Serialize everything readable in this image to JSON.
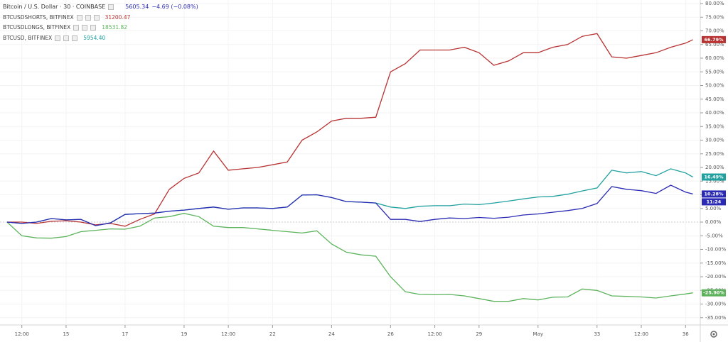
{
  "chart_data": {
    "type": "line",
    "x": [
      13,
      13.5,
      14,
      14.5,
      15,
      15.5,
      16,
      16.5,
      17,
      17.5,
      18,
      18.5,
      19,
      19.5,
      20,
      20.5,
      21,
      21.5,
      22,
      22.5,
      23,
      23.5,
      24,
      24.5,
      25,
      25.5,
      26,
      26.5,
      27,
      27.5,
      28,
      28.5,
      29,
      29.5,
      30,
      30.5,
      31,
      31.5,
      32,
      32.5,
      33,
      33.5,
      34,
      34.5,
      35,
      35.5,
      36,
      36.25
    ],
    "xlim": [
      12.76,
      36.5
    ],
    "xticks": [
      {
        "value": 13.5,
        "label": "12:00"
      },
      15,
      17,
      19,
      {
        "value": 20.5,
        "label": "12:00"
      },
      22,
      24,
      26,
      {
        "value": 27.5,
        "label": "12:00"
      },
      29,
      {
        "value": 31,
        "label": "May"
      },
      33,
      {
        "value": 34.5,
        "label": "12:00"
      },
      36
    ],
    "ylim": [
      -37.66,
      81.3
    ],
    "yticks": [
      {
        "value": -35,
        "label": "-35.00%"
      },
      {
        "value": -30,
        "label": "-30.00%"
      },
      {
        "value": -25,
        "label": "-25.00%"
      },
      {
        "value": -20,
        "label": "-20.00%"
      },
      {
        "value": -15,
        "label": "-15.00%"
      },
      {
        "value": -10,
        "label": "-10.00%"
      },
      {
        "value": -5,
        "label": "-5.00%"
      },
      {
        "value": 0,
        "label": "0.00%"
      },
      {
        "value": 5,
        "label": "5.00%"
      },
      {
        "value": 10,
        "label": "10.00%"
      },
      {
        "value": 15,
        "label": "15.00%"
      },
      {
        "value": 20,
        "label": "20.00%"
      },
      {
        "value": 25,
        "label": "25.00%"
      },
      {
        "value": 30,
        "label": "30.00%"
      },
      {
        "value": 35,
        "label": "35.00%"
      },
      {
        "value": 40,
        "label": "40.00%"
      },
      {
        "value": 45,
        "label": "45.00%"
      },
      {
        "value": 50,
        "label": "50.00%"
      },
      {
        "value": 55,
        "label": "55.00%"
      },
      {
        "value": 60,
        "label": "60.00%"
      },
      {
        "value": 65,
        "label": "65.00%"
      },
      {
        "value": 70,
        "label": "70.00%"
      },
      {
        "value": 75,
        "label": "75.00%"
      },
      {
        "value": 80,
        "label": "80.00%"
      }
    ],
    "grid": true,
    "main_price": "5605.34",
    "main_change": "−4.69 (−0.08%)",
    "series": [
      {
        "name": "Bitcoin / U.S. Dollar · 30 · COINBASE",
        "color": "#2a2ab4",
        "last_label": "10.28%",
        "countdown": "11:24",
        "values": [
          0,
          -0.5,
          0,
          1.3,
          0.8,
          1,
          -1.3,
          -0.3,
          2.8,
          3.1,
          3.3,
          4,
          4.4,
          5,
          5.5,
          4.7,
          5.2,
          5.2,
          5,
          5.5,
          9.9,
          10,
          9,
          7.5,
          7.3,
          7,
          1,
          1,
          0.2,
          1,
          1.5,
          1.3,
          1.7,
          1.4,
          1.8,
          2.6,
          3,
          3.6,
          4.2,
          5,
          6.8,
          13,
          12,
          11.5,
          10.5,
          13.5,
          11,
          10.28
        ]
      },
      {
        "name": "BTCUSDSHORTS, BITFINEX",
        "color": "#b83232",
        "last_price": "31200.47",
        "last_label": "66.79%",
        "values": [
          0,
          0,
          -0.5,
          0.3,
          0.5,
          0,
          -1,
          -0.5,
          -1.5,
          1,
          3,
          12,
          16,
          18,
          26,
          19,
          19.5,
          20,
          21,
          22,
          30,
          33,
          37,
          38,
          38,
          38.4,
          55,
          58,
          63,
          63,
          63,
          64,
          62,
          57.4,
          59,
          62,
          62,
          64,
          65,
          68,
          69,
          60.5,
          60,
          61,
          62,
          64,
          65.5,
          66.79
        ]
      },
      {
        "name": "BTCUSDLONGS, BITFINEX",
        "color": "#5cb35c",
        "last_price": "18531.82",
        "last_label": "-25.90%",
        "values": [
          0,
          -5,
          -5.8,
          -5.9,
          -5.3,
          -3.5,
          -3,
          -2.5,
          -2.6,
          -1.5,
          1.5,
          2,
          3.2,
          2,
          -1.5,
          -2,
          -2,
          -2.5,
          -3,
          -3.5,
          -4,
          -3.2,
          -8,
          -11,
          -12,
          -12.5,
          -20,
          -25.5,
          -26.5,
          -26.6,
          -26.5,
          -27,
          -28,
          -29,
          -29,
          -28,
          -28.5,
          -27.5,
          -27.4,
          -24.5,
          -25,
          -27,
          -27.2,
          -27.4,
          -27.8,
          -27,
          -26.3,
          -25.9
        ]
      },
      {
        "name": "BTCUSD, BITFINEX",
        "color": "#21a0a0",
        "last_price": "5954.40",
        "last_label": "16.49%",
        "values": [
          0,
          -0.5,
          0,
          1.3,
          0.8,
          1,
          -1.3,
          -0.3,
          2.8,
          3.1,
          3.3,
          4,
          4.4,
          5,
          5.5,
          4.7,
          5.2,
          5.2,
          5,
          5.5,
          9.9,
          10,
          9,
          7.5,
          7.3,
          7,
          5.5,
          5,
          5.8,
          6,
          6,
          6.6,
          6.4,
          7,
          7.7,
          8.5,
          9.2,
          9.4,
          10.2,
          11.4,
          12.5,
          19,
          18,
          18.5,
          17,
          19.5,
          18,
          16.49
        ]
      }
    ]
  }
}
